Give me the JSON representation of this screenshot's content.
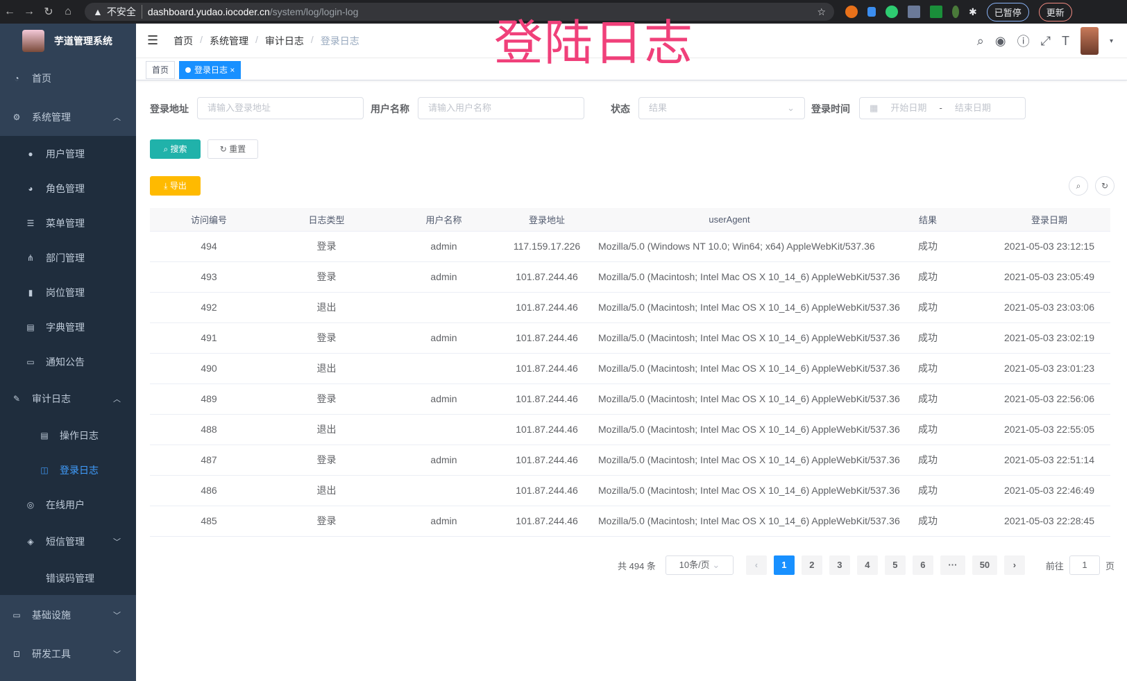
{
  "browser": {
    "insecure": "不安全",
    "host": "dashboard.yudao.iocoder.cn",
    "path": "/system/log/login-log",
    "paused": "已暂停",
    "update": "更新"
  },
  "overlay_title": "登陆日志",
  "sidebar": {
    "title": "芋道管理系统",
    "items": [
      {
        "label": "首页",
        "icon": "dashboard-icon"
      },
      {
        "label": "系统管理",
        "icon": "gear-icon",
        "arrow": "^"
      },
      {
        "label": "用户管理",
        "icon": "user-icon"
      },
      {
        "label": "角色管理",
        "icon": "peoples-icon"
      },
      {
        "label": "菜单管理",
        "icon": "tree-table-icon"
      },
      {
        "label": "部门管理",
        "icon": "tree-icon"
      },
      {
        "label": "岗位管理",
        "icon": "post-icon"
      },
      {
        "label": "字典管理",
        "icon": "dict-icon"
      },
      {
        "label": "通知公告",
        "icon": "message-icon"
      },
      {
        "label": "审计日志",
        "icon": "log-icon",
        "arrow": "^"
      },
      {
        "label": "操作日志",
        "icon": "form-icon"
      },
      {
        "label": "登录日志",
        "icon": "logininfor-icon",
        "active": true
      },
      {
        "label": "在线用户",
        "icon": "online-icon"
      },
      {
        "label": "短信管理",
        "icon": "validcode-icon",
        "arrow": "v"
      },
      {
        "label": "错误码管理",
        "icon": "code-icon"
      },
      {
        "label": "基础设施",
        "icon": "monitor-icon",
        "arrow": "v"
      },
      {
        "label": "研发工具",
        "icon": "tool-icon",
        "arrow": "v"
      }
    ]
  },
  "breadcrumb": [
    "首页",
    "系统管理",
    "审计日志",
    "登录日志"
  ],
  "tags": [
    "首页",
    "登录日志"
  ],
  "filters": {
    "addr_label": "登录地址",
    "addr_ph": "请输入登录地址",
    "user_label": "用户名称",
    "user_ph": "请输入用户名称",
    "status_label": "状态",
    "status_ph": "结果",
    "time_label": "登录时间",
    "start_ph": "开始日期",
    "sep": "-",
    "end_ph": "结束日期"
  },
  "buttons": {
    "search": "搜索",
    "reset": "重置",
    "export": "导出"
  },
  "table": {
    "headers": [
      "访问编号",
      "日志类型",
      "用户名称",
      "登录地址",
      "userAgent",
      "结果",
      "登录日期"
    ],
    "rows": [
      [
        "494",
        "登录",
        "admin",
        "117.159.17.226",
        "Mozilla/5.0 (Windows NT 10.0; Win64; x64) AppleWebKit/537.36",
        "成功",
        "2021-05-03 23:12:15"
      ],
      [
        "493",
        "登录",
        "admin",
        "101.87.244.46",
        "Mozilla/5.0 (Macintosh; Intel Mac OS X 10_14_6) AppleWebKit/537.36",
        "成功",
        "2021-05-03 23:05:49"
      ],
      [
        "492",
        "退出",
        "",
        "101.87.244.46",
        "Mozilla/5.0 (Macintosh; Intel Mac OS X 10_14_6) AppleWebKit/537.36",
        "成功",
        "2021-05-03 23:03:06"
      ],
      [
        "491",
        "登录",
        "admin",
        "101.87.244.46",
        "Mozilla/5.0 (Macintosh; Intel Mac OS X 10_14_6) AppleWebKit/537.36",
        "成功",
        "2021-05-03 23:02:19"
      ],
      [
        "490",
        "退出",
        "",
        "101.87.244.46",
        "Mozilla/5.0 (Macintosh; Intel Mac OS X 10_14_6) AppleWebKit/537.36",
        "成功",
        "2021-05-03 23:01:23"
      ],
      [
        "489",
        "登录",
        "admin",
        "101.87.244.46",
        "Mozilla/5.0 (Macintosh; Intel Mac OS X 10_14_6) AppleWebKit/537.36",
        "成功",
        "2021-05-03 22:56:06"
      ],
      [
        "488",
        "退出",
        "",
        "101.87.244.46",
        "Mozilla/5.0 (Macintosh; Intel Mac OS X 10_14_6) AppleWebKit/537.36",
        "成功",
        "2021-05-03 22:55:05"
      ],
      [
        "487",
        "登录",
        "admin",
        "101.87.244.46",
        "Mozilla/5.0 (Macintosh; Intel Mac OS X 10_14_6) AppleWebKit/537.36",
        "成功",
        "2021-05-03 22:51:14"
      ],
      [
        "486",
        "退出",
        "",
        "101.87.244.46",
        "Mozilla/5.0 (Macintosh; Intel Mac OS X 10_14_6) AppleWebKit/537.36",
        "成功",
        "2021-05-03 22:46:49"
      ],
      [
        "485",
        "登录",
        "admin",
        "101.87.244.46",
        "Mozilla/5.0 (Macintosh; Intel Mac OS X 10_14_6) AppleWebKit/537.36",
        "成功",
        "2021-05-03 22:28:45"
      ]
    ]
  },
  "pagination": {
    "total": "共 494 条",
    "page_size": "10条/页",
    "pages": [
      "1",
      "2",
      "3",
      "4",
      "5",
      "6",
      "···",
      "50"
    ],
    "current": "1",
    "goto": "前往",
    "goto_value": "1",
    "page_unit": "页"
  },
  "colors": {
    "sidebar": "#304156",
    "submenu": "#1f2d3d",
    "active": "#409eff",
    "search": "#20b2aa",
    "export": "#ffba00",
    "title": "#f0407a"
  }
}
